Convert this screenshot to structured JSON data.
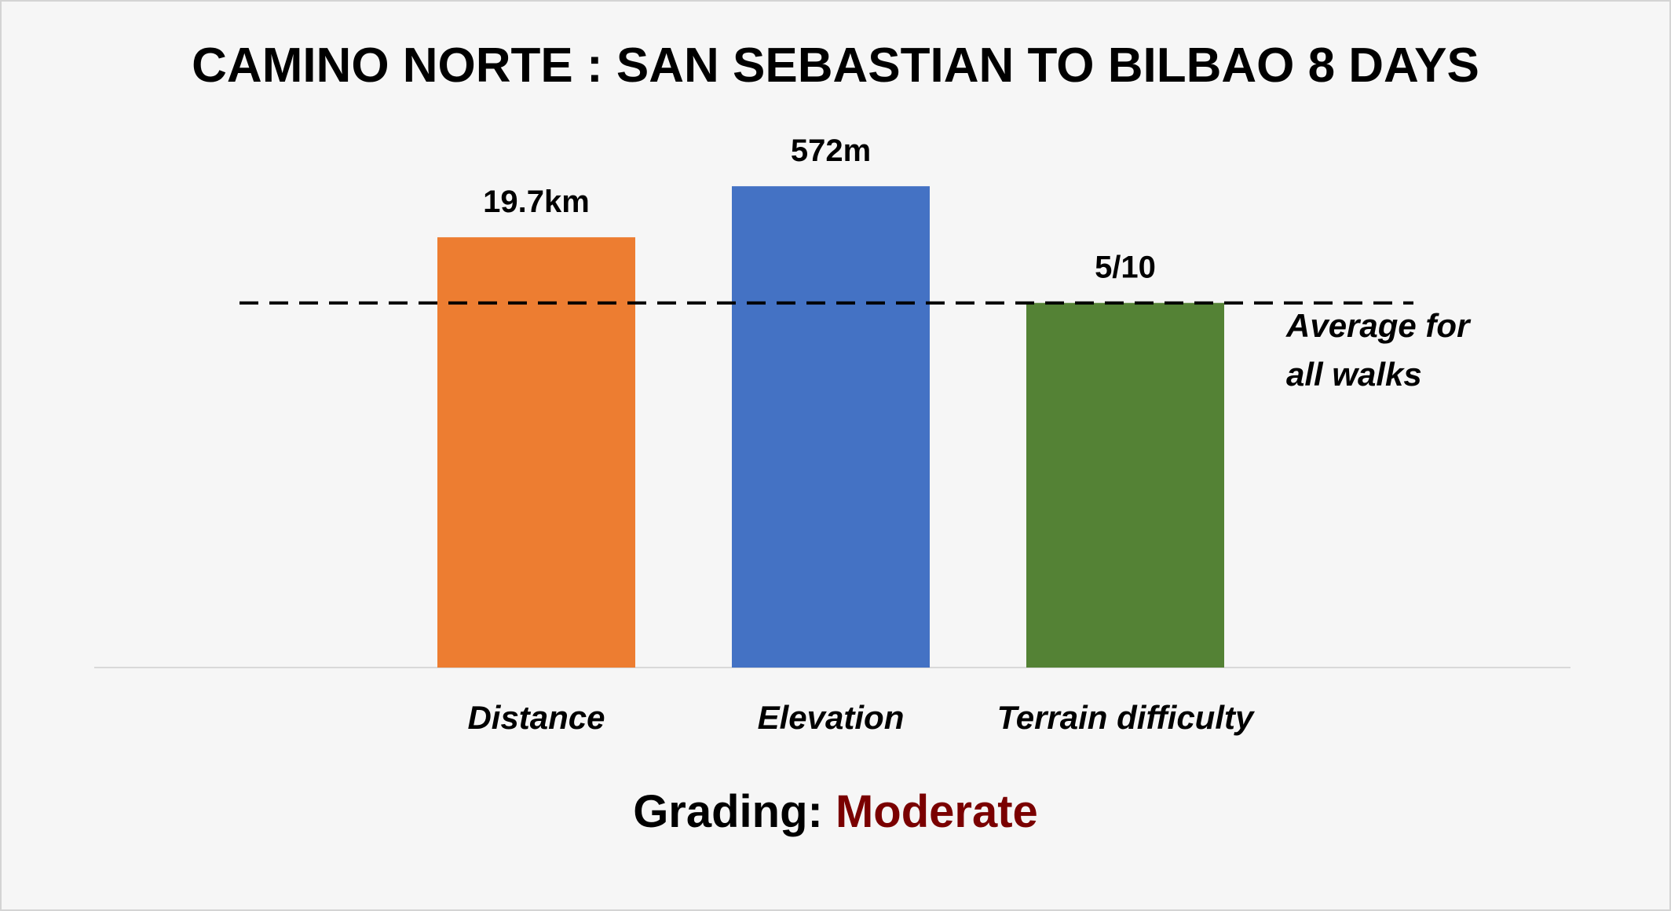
{
  "chart_data": {
    "type": "bar",
    "title": "CAMINO NORTE : SAN SEBASTIAN TO BILBAO 8 DAYS",
    "categories": [
      "Distance",
      "Elevation",
      "Terrain difficulty"
    ],
    "data_labels": [
      "19.7km",
      "572m",
      "5/10"
    ],
    "relative_to_average": [
      1.18,
      1.32,
      1.0
    ],
    "colors": [
      "#ED7D31",
      "#4472C4",
      "#548235"
    ],
    "reference_line": {
      "value": 1.0,
      "style": "dashed",
      "label_lines": [
        "Average for",
        "all walks"
      ]
    },
    "ylim": [
      0,
      1.4
    ],
    "grid": false,
    "legend": "none"
  },
  "footer": {
    "grading_label": "Grading: ",
    "grading_value": "Moderate"
  }
}
